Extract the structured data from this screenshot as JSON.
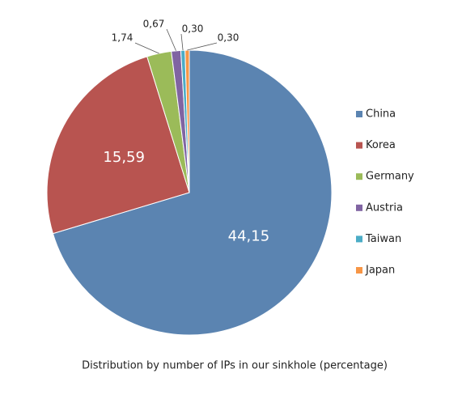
{
  "chart_data": {
    "type": "pie",
    "caption": "Distribution by number of IPs in our sinkhole (percentage)",
    "categories": [
      "China",
      "Korea",
      "Germany",
      "Austria",
      "Taiwan",
      "Japan"
    ],
    "values": [
      44.15,
      15.59,
      1.74,
      0.67,
      0.3,
      0.3
    ],
    "value_labels": [
      "44,15",
      "15,59",
      "1,74",
      "0,67",
      "0,30",
      "0,30"
    ],
    "colors": [
      "#5b84b1",
      "#b85450",
      "#9bbb59",
      "#8064a2",
      "#4bacc6",
      "#f79646"
    ],
    "legend": "right"
  }
}
